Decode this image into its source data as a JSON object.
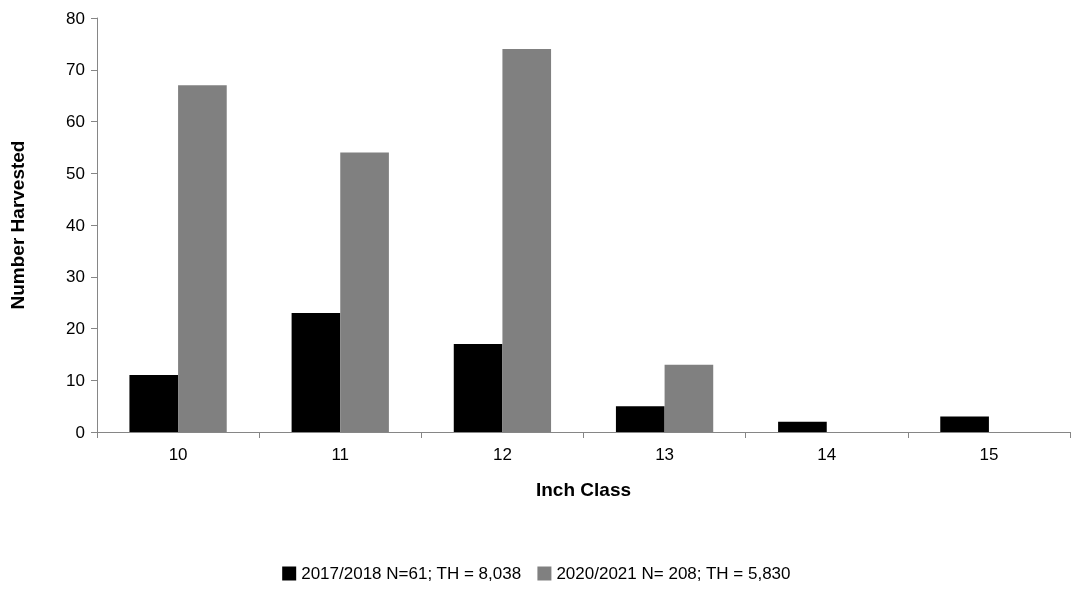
{
  "chart_data": {
    "type": "bar",
    "xlabel": "Inch Class",
    "ylabel": "Number Harvested",
    "categories": [
      "10",
      "11",
      "12",
      "13",
      "14",
      "15"
    ],
    "series": [
      {
        "name": "2017/2018 N=61; TH = 8,038",
        "color": "#000000",
        "values": [
          11,
          23,
          17,
          5,
          2,
          3
        ]
      },
      {
        "name": "2020/2021 N= 208; TH = 5,830",
        "color": "#808080",
        "values": [
          67,
          54,
          74,
          13,
          0,
          0
        ]
      }
    ],
    "ylim": [
      0,
      80
    ],
    "yticks": [
      0,
      10,
      20,
      30,
      40,
      50,
      60,
      70,
      80
    ],
    "grid": false,
    "legend": "bottom"
  }
}
